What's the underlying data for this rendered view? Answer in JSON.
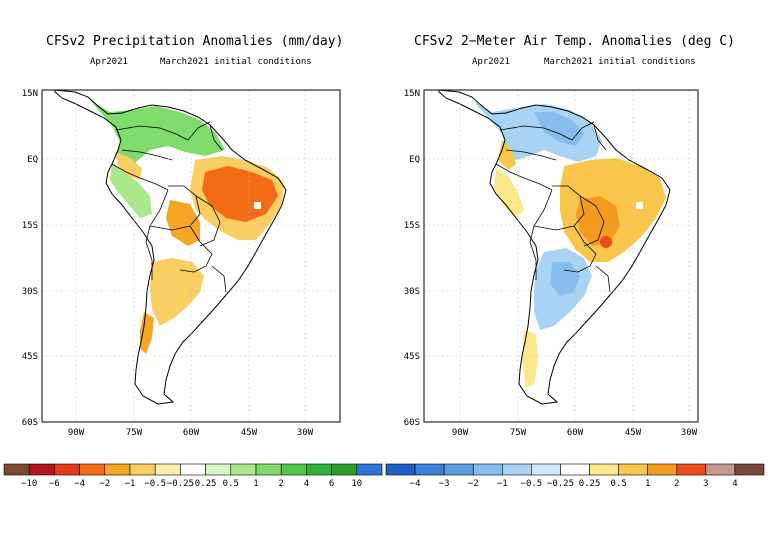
{
  "left_map": {
    "title": "CFSv2 Precipitation Anomalies (mm/day)",
    "valid": "Apr2021",
    "init": "March2021 initial conditions"
  },
  "right_map": {
    "title": "CFSv2 2−Meter Air Temp. Anomalies (deg C)",
    "valid": "Apr2021",
    "init": "March2021 initial conditions"
  },
  "axes": {
    "lat_labels": [
      "15N",
      "EQ",
      "15S",
      "30S",
      "45S",
      "60S"
    ],
    "lon_labels": [
      "90W",
      "75W",
      "60W",
      "45W",
      "30W"
    ]
  },
  "precip_colorbar": {
    "colors": [
      "#7b4a2e",
      "#b0151b",
      "#e33a1c",
      "#f46b16",
      "#f5a623",
      "#f9cf63",
      "#fbeeb0",
      "#ffffff",
      "#d8f5c4",
      "#a9e98c",
      "#7fdc6a",
      "#52c94c",
      "#2eb33a",
      "#2b9d2b",
      "#2f75d8"
    ],
    "labels": [
      "−10",
      "−6",
      "−4",
      "−2",
      "−1",
      "−0.5",
      "−0.25",
      "0.25",
      "0.5",
      "1",
      "2",
      "4",
      "6",
      "10"
    ]
  },
  "temp_colorbar": {
    "colors": [
      "#1f5fc8",
      "#3a80d8",
      "#5e9de3",
      "#86bdee",
      "#a9d3f4",
      "#cbe9fa",
      "#ffffff",
      "#fde88b",
      "#f9c54a",
      "#f49a1c",
      "#ea4d1a",
      "#c99890",
      "#7a4a3e"
    ],
    "labels": [
      "−4",
      "−3",
      "−2",
      "−1",
      "−0.5",
      "−0.25",
      "0.25",
      "0.5",
      "1",
      "2",
      "3",
      "4"
    ]
  }
}
